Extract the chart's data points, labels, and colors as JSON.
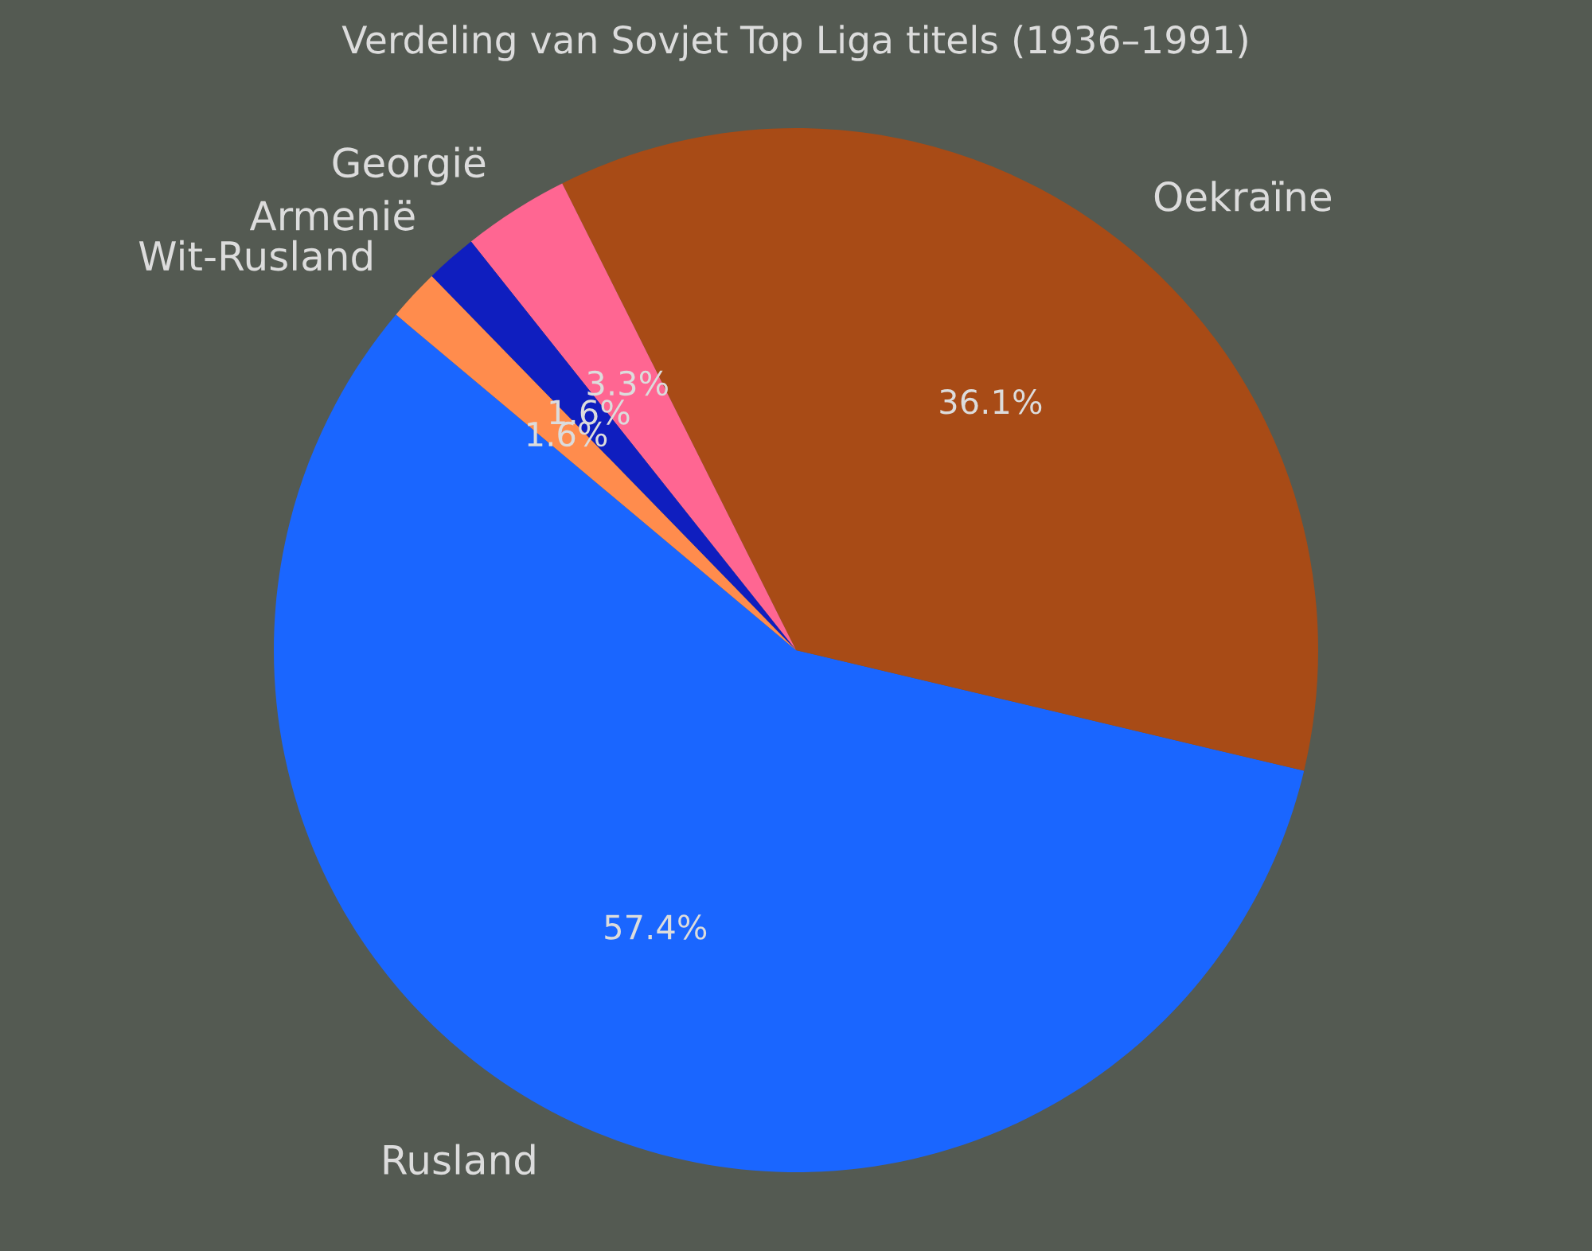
{
  "chart_data": {
    "type": "pie",
    "title": "Verdeling van Sovjet Top Liga titels (1936–1991)",
    "categories": [
      "Rusland",
      "Oekraïne",
      "Georgië",
      "Armenië",
      "Wit-Rusland"
    ],
    "values": [
      57.4,
      36.1,
      3.3,
      1.6,
      1.6
    ],
    "value_labels": [
      "57.4%",
      "36.1%",
      "3.3%",
      "1.6%",
      "1.6%"
    ],
    "colors": [
      "#1a66ff",
      "#a84b16",
      "#ff6692",
      "#0f1ebf",
      "#ff8c4d"
    ],
    "legend": false
  }
}
